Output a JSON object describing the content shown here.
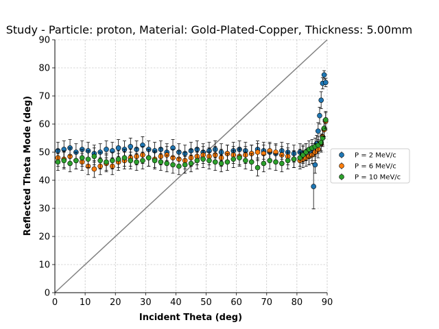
{
  "chart_data": {
    "type": "scatter",
    "title": "Study - Particle: proton, Material: Gold-Plated-Copper, Thickness: 5.00mm",
    "xlabel": "Incident Theta (deg)",
    "ylabel": "Reflected Theta Mode (deg)",
    "xlim": [
      0,
      90
    ],
    "ylim": [
      0,
      90
    ],
    "xticks": [
      "0",
      "10",
      "20",
      "30",
      "40",
      "50",
      "60",
      "70",
      "80",
      "90"
    ],
    "yticks": [
      "0",
      "10",
      "20",
      "30",
      "40",
      "50",
      "60",
      "70",
      "80",
      "90"
    ],
    "grid": true,
    "legend_position": "right-center",
    "reference_line": {
      "from": [
        0,
        0
      ],
      "to": [
        90,
        90
      ],
      "color": "#808080"
    },
    "series": [
      {
        "name": "P = 2 MeV/c",
        "color": "#1f77b4",
        "x": [
          1,
          3,
          5,
          7,
          9,
          11,
          13,
          15,
          17,
          19,
          21,
          23,
          25,
          27,
          29,
          31,
          33,
          35,
          37,
          39,
          41,
          43,
          45,
          47,
          49,
          51,
          53,
          55,
          57,
          59,
          61,
          63,
          65,
          67,
          69,
          71,
          73,
          75,
          77,
          79,
          81,
          82,
          83,
          84,
          85,
          85.5,
          86,
          86.5,
          87,
          87.5,
          88,
          88.5,
          89,
          89.5
        ],
        "y": [
          50.5,
          51,
          51.5,
          50,
          51,
          50.5,
          49.5,
          50,
          51,
          50.5,
          51.5,
          51,
          52,
          51,
          52.5,
          51,
          50.5,
          51,
          50,
          51.5,
          50,
          49.5,
          50.5,
          51,
          50,
          50.5,
          51,
          50,
          49.5,
          50.5,
          51,
          50.5,
          49.5,
          51,
          50.5,
          50,
          49.5,
          50.5,
          50,
          49.5,
          50,
          49.5,
          50,
          48.5,
          50,
          37.8,
          45.5,
          53,
          57.5,
          63,
          68.5,
          74.5,
          77.5,
          74.8
        ],
        "err": [
          3,
          3,
          3,
          3,
          3,
          3,
          3,
          3,
          3,
          3,
          3,
          3,
          3,
          3,
          3,
          3,
          3,
          3,
          3,
          3,
          3,
          3,
          3,
          3,
          3,
          3,
          3,
          3,
          3,
          3,
          3,
          3,
          3,
          3,
          3,
          3,
          3,
          3,
          3,
          3,
          3,
          3,
          3,
          3,
          3,
          8,
          3,
          3,
          3,
          3,
          3,
          2,
          1.5,
          1.5
        ]
      },
      {
        "name": "P = 6 MeV/c",
        "color": "#ff7f0e",
        "x": [
          1,
          3,
          5,
          7,
          9,
          11,
          13,
          15,
          17,
          19,
          21,
          23,
          25,
          27,
          29,
          31,
          33,
          35,
          37,
          39,
          41,
          43,
          45,
          47,
          49,
          51,
          53,
          55,
          57,
          59,
          61,
          63,
          65,
          67,
          69,
          71,
          73,
          75,
          77,
          79,
          81,
          82,
          83,
          84,
          85,
          86,
          87,
          88,
          88.5,
          89,
          89.5
        ],
        "y": [
          48,
          47.5,
          48.5,
          47,
          46.5,
          45,
          44,
          45,
          46,
          45,
          46.5,
          47,
          48,
          48.5,
          49,
          48,
          47.5,
          48.5,
          49,
          48,
          47.5,
          47,
          48,
          48.5,
          49,
          48.5,
          49,
          48,
          49.5,
          49,
          48.5,
          49,
          49.5,
          50,
          49.5,
          50.5,
          50,
          49,
          48.5,
          47.5,
          47,
          47.5,
          48,
          48.5,
          49,
          50,
          51,
          53,
          55.5,
          58,
          61
        ],
        "err": [
          3,
          3,
          3,
          3,
          3,
          3,
          3,
          3,
          3,
          3,
          3,
          3,
          3,
          3,
          3,
          3,
          3,
          3,
          3,
          3,
          3,
          3,
          3,
          3,
          3,
          3,
          3,
          3,
          3,
          3,
          3,
          3,
          3,
          3,
          3,
          3,
          3,
          3,
          3,
          3,
          3,
          3,
          3,
          3,
          3,
          3,
          3,
          3,
          3,
          3,
          3
        ]
      },
      {
        "name": "P = 10 MeV/c",
        "color": "#2ca02c",
        "x": [
          1,
          3,
          5,
          7,
          9,
          11,
          13,
          15,
          17,
          19,
          21,
          23,
          25,
          27,
          29,
          31,
          33,
          35,
          37,
          39,
          41,
          43,
          45,
          47,
          49,
          51,
          53,
          55,
          57,
          59,
          61,
          63,
          65,
          67,
          69,
          71,
          73,
          75,
          77,
          79,
          81,
          82,
          83,
          84,
          85,
          86,
          87,
          88,
          88.5,
          89,
          89.5
        ],
        "y": [
          46.5,
          47,
          46,
          47,
          48,
          47.5,
          48.5,
          47,
          46.5,
          47,
          47.5,
          48,
          47,
          46.5,
          47,
          48,
          47,
          46.5,
          46,
          45.5,
          45,
          45.5,
          46,
          47,
          47.5,
          47,
          46.5,
          46,
          46.5,
          47.5,
          48,
          47,
          46.5,
          44.5,
          46,
          47,
          46.5,
          46,
          47,
          47.5,
          48,
          49,
          50,
          51,
          51.5,
          52,
          52.5,
          53.5,
          55,
          58.5,
          61.5
        ],
        "err": [
          3,
          3,
          3,
          3,
          3,
          3,
          3,
          3,
          3,
          3,
          3,
          3,
          3,
          3,
          3,
          3,
          3,
          3,
          3,
          3,
          3,
          3,
          3,
          3,
          3,
          3,
          3,
          3,
          3,
          3,
          3,
          3,
          3,
          3,
          3,
          3,
          3,
          3,
          3,
          3,
          3,
          3,
          3,
          3,
          3,
          3,
          3,
          3,
          3,
          3,
          3
        ]
      }
    ]
  }
}
